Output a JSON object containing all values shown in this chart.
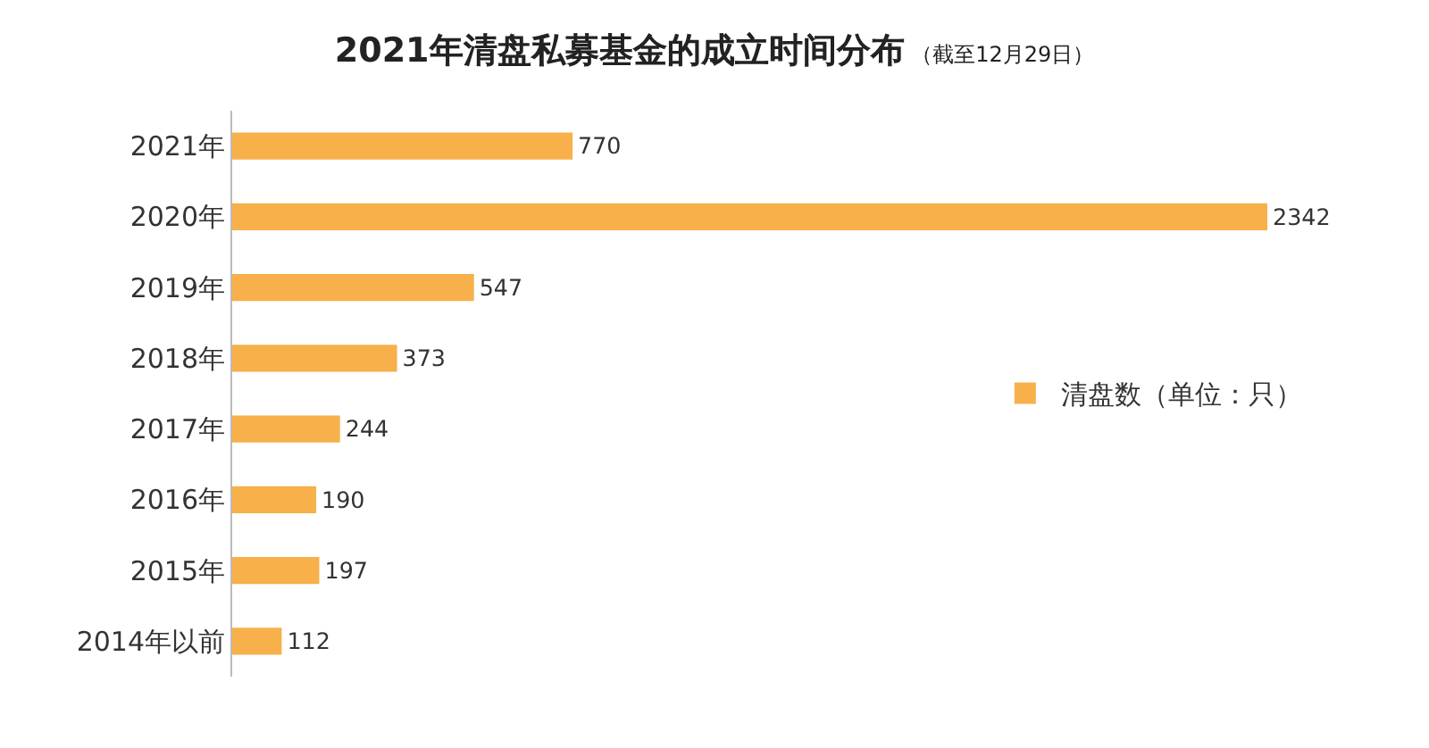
{
  "chart_data": {
    "type": "bar",
    "orientation": "horizontal",
    "title": "2021年清盘私募基金的成立时间分布",
    "subtitle": "（截至12月29日）",
    "categories": [
      "2021年",
      "2020年",
      "2019年",
      "2018年",
      "2017年",
      "2016年",
      "2015年",
      "2014年以前"
    ],
    "series": [
      {
        "name": "清盘数（单位：只）",
        "color": "#f7b04a",
        "values": [
          770,
          2342,
          547,
          373,
          244,
          190,
          197,
          112
        ]
      }
    ],
    "data_labels": true,
    "legend": "right",
    "grid": false
  }
}
